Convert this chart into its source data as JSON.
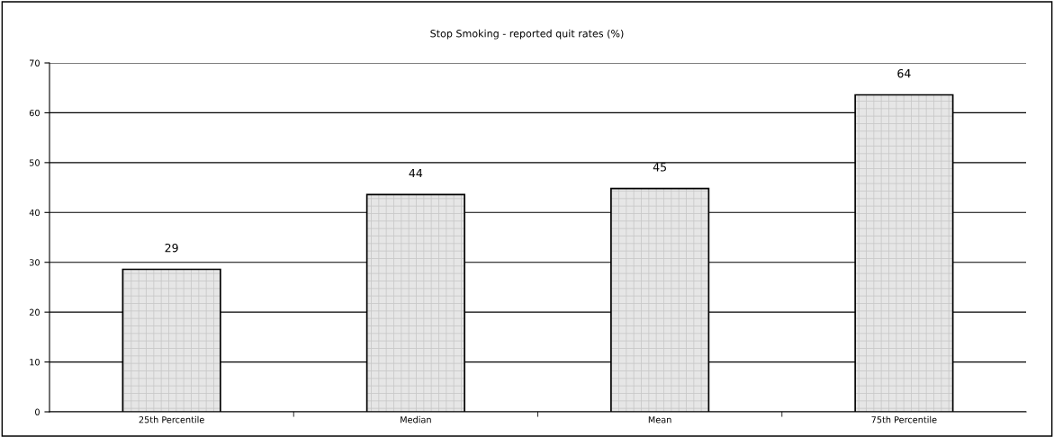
{
  "chart_data": {
    "type": "bar",
    "title": "Stop Smoking - reported quit rates (%)",
    "categories": [
      "25th Percentile",
      "Median",
      "Mean",
      "75th Percentile"
    ],
    "values": [
      28.6,
      43.6,
      44.8,
      63.6
    ],
    "value_labels": [
      "29",
      "44",
      "45",
      "64"
    ],
    "color": "#e6e6e6",
    "ylim": [
      0,
      70
    ],
    "yticks": [
      0,
      10,
      20,
      30,
      40,
      50,
      60,
      70
    ],
    "grid": "y",
    "legend": false
  }
}
